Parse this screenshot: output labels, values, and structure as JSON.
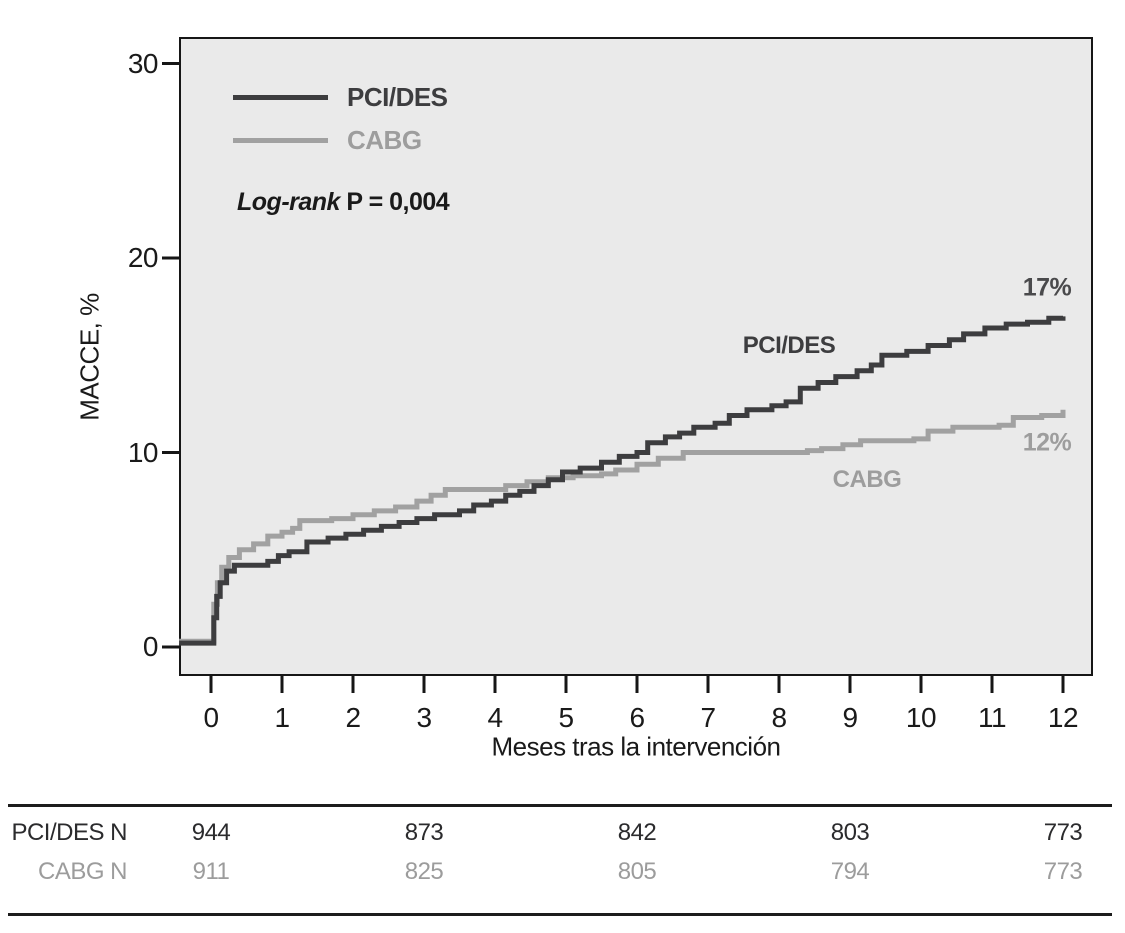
{
  "chart_data": {
    "type": "line",
    "subtype": "kaplan-meier-step",
    "title": "",
    "xlabel": "Meses tras la intervención",
    "ylabel": "MACCE, %",
    "xlim": [
      -0.45,
      12.4
    ],
    "ylim": [
      0,
      30
    ],
    "x_ticks": [
      0,
      1,
      2,
      3,
      4,
      5,
      6,
      7,
      8,
      9,
      10,
      11,
      12
    ],
    "y_ticks": [
      0,
      10,
      20,
      30
    ],
    "grid": false,
    "plot_bg": "#eaeaea",
    "axis_color": "#161616",
    "legend_position": "top-left-inside",
    "annotation": {
      "prefix": "Log-rank",
      "text": " P = 0,004"
    },
    "series": [
      {
        "name": "PCI/DES",
        "color": "#3d3d3f",
        "end_label": "17%",
        "final_value": 17,
        "points": [
          [
            -0.45,
            0.2
          ],
          [
            0,
            0.2
          ],
          [
            0.04,
            1.5
          ],
          [
            0.08,
            2.6
          ],
          [
            0.13,
            3.3
          ],
          [
            0.22,
            3.9
          ],
          [
            0.33,
            4.2
          ],
          [
            0.8,
            4.4
          ],
          [
            0.95,
            4.7
          ],
          [
            1.1,
            4.9
          ],
          [
            1.35,
            5.4
          ],
          [
            1.65,
            5.6
          ],
          [
            1.9,
            5.8
          ],
          [
            2.15,
            6.0
          ],
          [
            2.4,
            6.2
          ],
          [
            2.65,
            6.4
          ],
          [
            2.9,
            6.6
          ],
          [
            3.15,
            6.8
          ],
          [
            3.5,
            7.0
          ],
          [
            3.7,
            7.3
          ],
          [
            3.95,
            7.5
          ],
          [
            4.15,
            7.8
          ],
          [
            4.35,
            8.0
          ],
          [
            4.55,
            8.3
          ],
          [
            4.75,
            8.6
          ],
          [
            4.95,
            9.0
          ],
          [
            5.2,
            9.2
          ],
          [
            5.5,
            9.5
          ],
          [
            5.75,
            9.8
          ],
          [
            6.0,
            10.0
          ],
          [
            6.15,
            10.5
          ],
          [
            6.4,
            10.8
          ],
          [
            6.6,
            11.0
          ],
          [
            6.8,
            11.3
          ],
          [
            7.1,
            11.5
          ],
          [
            7.3,
            11.9
          ],
          [
            7.55,
            12.2
          ],
          [
            7.9,
            12.4
          ],
          [
            8.1,
            12.6
          ],
          [
            8.3,
            13.3
          ],
          [
            8.55,
            13.6
          ],
          [
            8.8,
            13.9
          ],
          [
            9.1,
            14.2
          ],
          [
            9.3,
            14.5
          ],
          [
            9.45,
            15.0
          ],
          [
            9.8,
            15.2
          ],
          [
            10.1,
            15.5
          ],
          [
            10.4,
            15.8
          ],
          [
            10.6,
            16.1
          ],
          [
            10.9,
            16.4
          ],
          [
            11.2,
            16.6
          ],
          [
            11.5,
            16.7
          ],
          [
            11.8,
            16.9
          ],
          [
            12,
            17.0
          ]
        ]
      },
      {
        "name": "CABG",
        "color": "#a1a1a1",
        "end_label": "12%",
        "final_value": 12,
        "points": [
          [
            -0.45,
            0.3
          ],
          [
            0,
            0.3
          ],
          [
            0.04,
            2.2
          ],
          [
            0.09,
            3.3
          ],
          [
            0.15,
            4.1
          ],
          [
            0.25,
            4.6
          ],
          [
            0.4,
            5.0
          ],
          [
            0.6,
            5.3
          ],
          [
            0.8,
            5.7
          ],
          [
            1.0,
            5.9
          ],
          [
            1.15,
            6.1
          ],
          [
            1.25,
            6.5
          ],
          [
            1.7,
            6.6
          ],
          [
            2.0,
            6.8
          ],
          [
            2.3,
            7.0
          ],
          [
            2.6,
            7.2
          ],
          [
            2.9,
            7.5
          ],
          [
            3.1,
            7.8
          ],
          [
            3.3,
            8.1
          ],
          [
            3.9,
            8.1
          ],
          [
            4.15,
            8.3
          ],
          [
            4.45,
            8.5
          ],
          [
            4.75,
            8.7
          ],
          [
            5.1,
            8.8
          ],
          [
            5.5,
            8.9
          ],
          [
            5.7,
            9.1
          ],
          [
            6.0,
            9.4
          ],
          [
            6.3,
            9.7
          ],
          [
            6.65,
            10.0
          ],
          [
            8.4,
            10.1
          ],
          [
            8.6,
            10.2
          ],
          [
            8.9,
            10.4
          ],
          [
            9.15,
            10.6
          ],
          [
            9.9,
            10.7
          ],
          [
            10.1,
            11.1
          ],
          [
            10.45,
            11.3
          ],
          [
            11.1,
            11.4
          ],
          [
            11.3,
            11.8
          ],
          [
            11.7,
            11.9
          ],
          [
            12,
            12.2
          ]
        ]
      }
    ],
    "curve_labels": [
      {
        "text": "PCI/DES",
        "color": "#3d3d3f"
      },
      {
        "text": "CABG",
        "color": "#9d9d9d"
      }
    ]
  },
  "legend": {
    "items": [
      {
        "label": "PCI/DES",
        "color": "#3d3d3f"
      },
      {
        "label": "CABG",
        "color": "#a1a1a1"
      }
    ]
  },
  "risk_table": {
    "months": [
      0,
      3,
      6,
      9,
      12
    ],
    "rows": [
      {
        "label": "PCI/DES N",
        "color": "#2b2b2d",
        "values": [
          "944",
          "873",
          "842",
          "803",
          "773"
        ]
      },
      {
        "label": "CABG N",
        "color": "#9c9c9c",
        "values": [
          "911",
          "825",
          "805",
          "794",
          "773"
        ]
      }
    ]
  }
}
